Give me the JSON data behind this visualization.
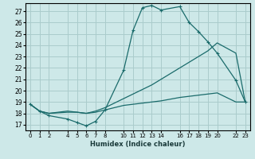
{
  "xlabel": "Humidex (Indice chaleur)",
  "bg_color": "#cde8e8",
  "grid_color": "#aacccc",
  "line_color": "#1a6b6b",
  "xlim": [
    -0.5,
    23.5
  ],
  "ylim": [
    16.5,
    27.7
  ],
  "yticks": [
    17,
    18,
    19,
    20,
    21,
    22,
    23,
    24,
    25,
    26,
    27
  ],
  "xtick_positions": [
    0,
    1,
    2,
    4,
    5,
    6,
    7,
    8,
    10,
    11,
    12,
    13,
    14,
    16,
    17,
    18,
    19,
    20,
    22,
    23
  ],
  "xtick_labels": [
    "0",
    "1",
    "2",
    "4",
    "5",
    "6",
    "7",
    "8",
    "10",
    "11",
    "12",
    "13",
    "14",
    "16",
    "17",
    "18",
    "19",
    "20",
    "22",
    "23"
  ],
  "line1_x": [
    0,
    1,
    2,
    4,
    5,
    6,
    7,
    8,
    10,
    11,
    12,
    13,
    14,
    16,
    17,
    18,
    19,
    20,
    22,
    23
  ],
  "line1_y": [
    18.8,
    18.2,
    17.8,
    17.5,
    17.2,
    16.9,
    17.3,
    18.3,
    21.8,
    25.3,
    27.3,
    27.5,
    27.1,
    27.4,
    26.0,
    25.2,
    24.3,
    23.3,
    20.9,
    19.0
  ],
  "line2_x": [
    0,
    1,
    2,
    4,
    5,
    6,
    7,
    8,
    10,
    11,
    12,
    13,
    14,
    16,
    17,
    18,
    19,
    20,
    22,
    23
  ],
  "line2_y": [
    18.8,
    18.2,
    18.0,
    18.1,
    18.1,
    18.0,
    18.1,
    18.3,
    18.7,
    18.8,
    18.9,
    19.0,
    19.1,
    19.4,
    19.5,
    19.6,
    19.7,
    19.8,
    19.0,
    19.0
  ],
  "line3_x": [
    0,
    1,
    2,
    4,
    5,
    6,
    7,
    8,
    10,
    11,
    12,
    13,
    14,
    16,
    17,
    18,
    19,
    20,
    22,
    23
  ],
  "line3_y": [
    18.8,
    18.2,
    18.0,
    18.2,
    18.1,
    18.0,
    18.2,
    18.5,
    19.3,
    19.7,
    20.1,
    20.5,
    21.0,
    22.0,
    22.5,
    23.0,
    23.5,
    24.2,
    23.3,
    19.0
  ]
}
